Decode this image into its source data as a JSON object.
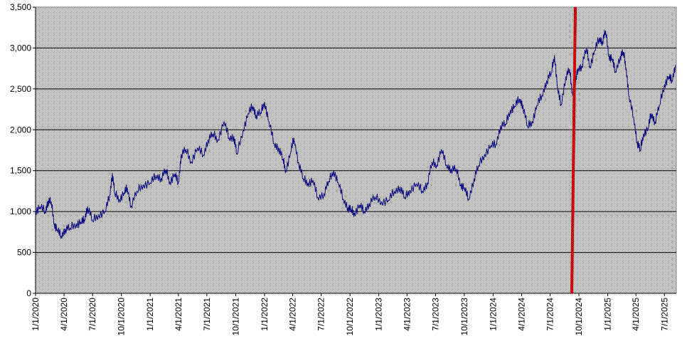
{
  "chart_data": {
    "type": "line",
    "title": "",
    "xlabel": "",
    "ylabel": "",
    "ylim": [
      0,
      3500
    ],
    "xlim": [
      "2020-01-01",
      "2025-08-08"
    ],
    "grid": "horizontal",
    "legend": "none",
    "y_ticks": [
      "0",
      "500",
      "1,000",
      "1,500",
      "2,000",
      "2,500",
      "3,000",
      "3,500"
    ],
    "y_tick_values": [
      0,
      500,
      1000,
      1500,
      2000,
      2500,
      3000,
      3500
    ],
    "x_ticks": [
      "1/1/2020",
      "4/1/2020",
      "7/1/2020",
      "10/1/2020",
      "1/1/2021",
      "4/1/2021",
      "7/1/2021",
      "10/1/2021",
      "1/1/2022",
      "4/1/2022",
      "7/1/2022",
      "10/1/2022",
      "1/1/2023",
      "4/1/2023",
      "7/1/2023",
      "10/1/2023",
      "1/1/2024",
      "4/1/2024",
      "7/1/2024",
      "10/1/2024",
      "1/1/2025",
      "4/1/2025",
      "7/1/2025"
    ],
    "x_tick_dates": [
      "2020-01-01",
      "2020-04-01",
      "2020-07-01",
      "2020-10-01",
      "2021-01-01",
      "2021-04-01",
      "2021-07-01",
      "2021-10-01",
      "2022-01-01",
      "2022-04-01",
      "2022-07-01",
      "2022-10-01",
      "2023-01-01",
      "2023-04-01",
      "2023-07-01",
      "2023-10-01",
      "2024-01-01",
      "2024-04-01",
      "2024-07-01",
      "2024-10-01",
      "2025-01-01",
      "2025-04-01",
      "2025-07-01"
    ],
    "series": [
      {
        "color": "#000080",
        "points": [
          [
            "2020-01-01",
            1000
          ],
          [
            "2020-01-15",
            1060
          ],
          [
            "2020-02-01",
            1000
          ],
          [
            "2020-02-10",
            1130
          ],
          [
            "2020-02-20",
            1120
          ],
          [
            "2020-03-01",
            850
          ],
          [
            "2020-03-10",
            780
          ],
          [
            "2020-03-23",
            700
          ],
          [
            "2020-04-05",
            790
          ],
          [
            "2020-04-20",
            800
          ],
          [
            "2020-05-10",
            850
          ],
          [
            "2020-05-25",
            870
          ],
          [
            "2020-06-05",
            900
          ],
          [
            "2020-06-15",
            1060
          ],
          [
            "2020-07-01",
            890
          ],
          [
            "2020-07-20",
            960
          ],
          [
            "2020-08-10",
            1000
          ],
          [
            "2020-08-25",
            1200
          ],
          [
            "2020-09-02",
            1470
          ],
          [
            "2020-09-10",
            1220
          ],
          [
            "2020-09-25",
            1150
          ],
          [
            "2020-10-10",
            1230
          ],
          [
            "2020-10-20",
            1290
          ],
          [
            "2020-11-01",
            1070
          ],
          [
            "2020-11-20",
            1250
          ],
          [
            "2020-12-10",
            1330
          ],
          [
            "2021-01-01",
            1350
          ],
          [
            "2021-01-20",
            1440
          ],
          [
            "2021-02-05",
            1410
          ],
          [
            "2021-02-20",
            1510
          ],
          [
            "2021-03-05",
            1360
          ],
          [
            "2021-03-20",
            1460
          ],
          [
            "2021-04-01",
            1350
          ],
          [
            "2021-04-10",
            1700
          ],
          [
            "2021-04-25",
            1760
          ],
          [
            "2021-05-12",
            1610
          ],
          [
            "2021-06-01",
            1780
          ],
          [
            "2021-06-20",
            1690
          ],
          [
            "2021-07-05",
            1880
          ],
          [
            "2021-07-20",
            1950
          ],
          [
            "2021-08-05",
            1880
          ],
          [
            "2021-08-25",
            2100
          ],
          [
            "2021-09-10",
            1900
          ],
          [
            "2021-09-25",
            1920
          ],
          [
            "2021-10-05",
            1700
          ],
          [
            "2021-10-25",
            2000
          ],
          [
            "2021-11-10",
            2200
          ],
          [
            "2021-11-25",
            2290
          ],
          [
            "2021-12-05",
            2180
          ],
          [
            "2021-12-20",
            2210
          ],
          [
            "2022-01-01",
            2340
          ],
          [
            "2022-01-15",
            2100
          ],
          [
            "2022-02-01",
            1830
          ],
          [
            "2022-02-15",
            1780
          ],
          [
            "2022-03-01",
            1640
          ],
          [
            "2022-03-10",
            1500
          ],
          [
            "2022-03-25",
            1720
          ],
          [
            "2022-04-05",
            1900
          ],
          [
            "2022-04-20",
            1600
          ],
          [
            "2022-05-05",
            1400
          ],
          [
            "2022-05-20",
            1350
          ],
          [
            "2022-06-05",
            1380
          ],
          [
            "2022-06-20",
            1170
          ],
          [
            "2022-07-10",
            1220
          ],
          [
            "2022-07-25",
            1370
          ],
          [
            "2022-08-10",
            1500
          ],
          [
            "2022-08-25",
            1350
          ],
          [
            "2022-09-10",
            1150
          ],
          [
            "2022-09-25",
            1050
          ],
          [
            "2022-10-05",
            1020
          ],
          [
            "2022-10-15",
            980
          ],
          [
            "2022-11-01",
            1080
          ],
          [
            "2022-11-15",
            1000
          ],
          [
            "2022-12-01",
            1100
          ],
          [
            "2022-12-20",
            1180
          ],
          [
            "2023-01-10",
            1120
          ],
          [
            "2023-02-01",
            1140
          ],
          [
            "2023-02-20",
            1250
          ],
          [
            "2023-03-10",
            1300
          ],
          [
            "2023-03-25",
            1170
          ],
          [
            "2023-04-10",
            1260
          ],
          [
            "2023-05-01",
            1340
          ],
          [
            "2023-05-20",
            1250
          ],
          [
            "2023-06-05",
            1350
          ],
          [
            "2023-06-20",
            1600
          ],
          [
            "2023-07-05",
            1570
          ],
          [
            "2023-07-20",
            1760
          ],
          [
            "2023-08-05",
            1570
          ],
          [
            "2023-08-20",
            1520
          ],
          [
            "2023-09-05",
            1520
          ],
          [
            "2023-09-20",
            1330
          ],
          [
            "2023-10-01",
            1290
          ],
          [
            "2023-10-15",
            1150
          ],
          [
            "2023-11-01",
            1400
          ],
          [
            "2023-11-15",
            1560
          ],
          [
            "2023-12-05",
            1700
          ],
          [
            "2023-12-25",
            1810
          ],
          [
            "2024-01-10",
            1820
          ],
          [
            "2024-01-25",
            2050
          ],
          [
            "2024-02-10",
            2070
          ],
          [
            "2024-02-25",
            2240
          ],
          [
            "2024-03-10",
            2290
          ],
          [
            "2024-03-25",
            2380
          ],
          [
            "2024-04-05",
            2300
          ],
          [
            "2024-04-20",
            2040
          ],
          [
            "2024-05-05",
            2100
          ],
          [
            "2024-05-20",
            2300
          ],
          [
            "2024-06-05",
            2420
          ],
          [
            "2024-06-20",
            2600
          ],
          [
            "2024-07-05",
            2700
          ],
          [
            "2024-07-15",
            2910
          ],
          [
            "2024-07-25",
            2500
          ],
          [
            "2024-08-05",
            2300
          ],
          [
            "2024-08-20",
            2650
          ],
          [
            "2024-09-01",
            2740
          ],
          [
            "2024-09-10",
            2450
          ],
          [
            "2024-09-18",
            2540
          ],
          [
            "2024-09-28",
            2750
          ],
          [
            "2024-10-10",
            2780
          ],
          [
            "2024-10-25",
            3000
          ],
          [
            "2024-11-05",
            2770
          ],
          [
            "2024-11-20",
            2970
          ],
          [
            "2024-12-05",
            3120
          ],
          [
            "2024-12-15",
            3080
          ],
          [
            "2024-12-25",
            3210
          ],
          [
            "2025-01-05",
            2900
          ],
          [
            "2025-01-15",
            2870
          ],
          [
            "2025-01-25",
            2710
          ],
          [
            "2025-02-10",
            2900
          ],
          [
            "2025-02-20",
            2950
          ],
          [
            "2025-03-01",
            2750
          ],
          [
            "2025-03-10",
            2400
          ],
          [
            "2025-03-25",
            2150
          ],
          [
            "2025-04-05",
            1850
          ],
          [
            "2025-04-15",
            1750
          ],
          [
            "2025-04-25",
            1950
          ],
          [
            "2025-05-10",
            2020
          ],
          [
            "2025-05-20",
            2200
          ],
          [
            "2025-06-01",
            2100
          ],
          [
            "2025-06-15",
            2300
          ],
          [
            "2025-07-01",
            2550
          ],
          [
            "2025-07-15",
            2650
          ],
          [
            "2025-07-25",
            2600
          ],
          [
            "2025-08-05",
            2790
          ]
        ]
      }
    ],
    "marker": {
      "color": "#cc0000",
      "date": "2024-09-15"
    }
  }
}
